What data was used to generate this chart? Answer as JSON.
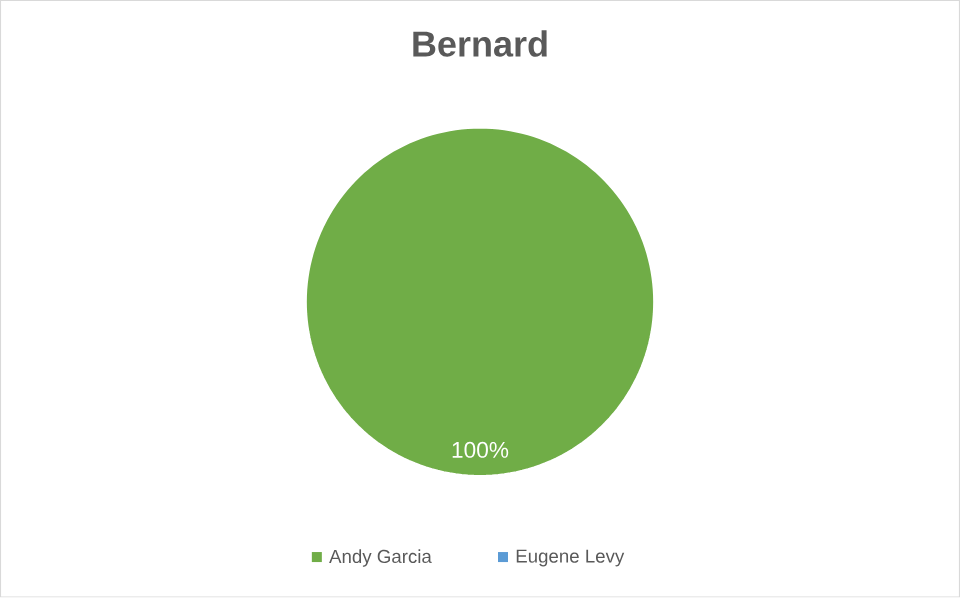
{
  "chart_data": {
    "type": "pie",
    "title": "Bernard",
    "categories": [
      "Andy Garcia",
      "Eugene Levy"
    ],
    "values": [
      100,
      0
    ],
    "colors": [
      "#70ad47",
      "#5b9bd5"
    ],
    "value_labels": [
      "100%",
      null
    ],
    "legend": "bottom"
  }
}
